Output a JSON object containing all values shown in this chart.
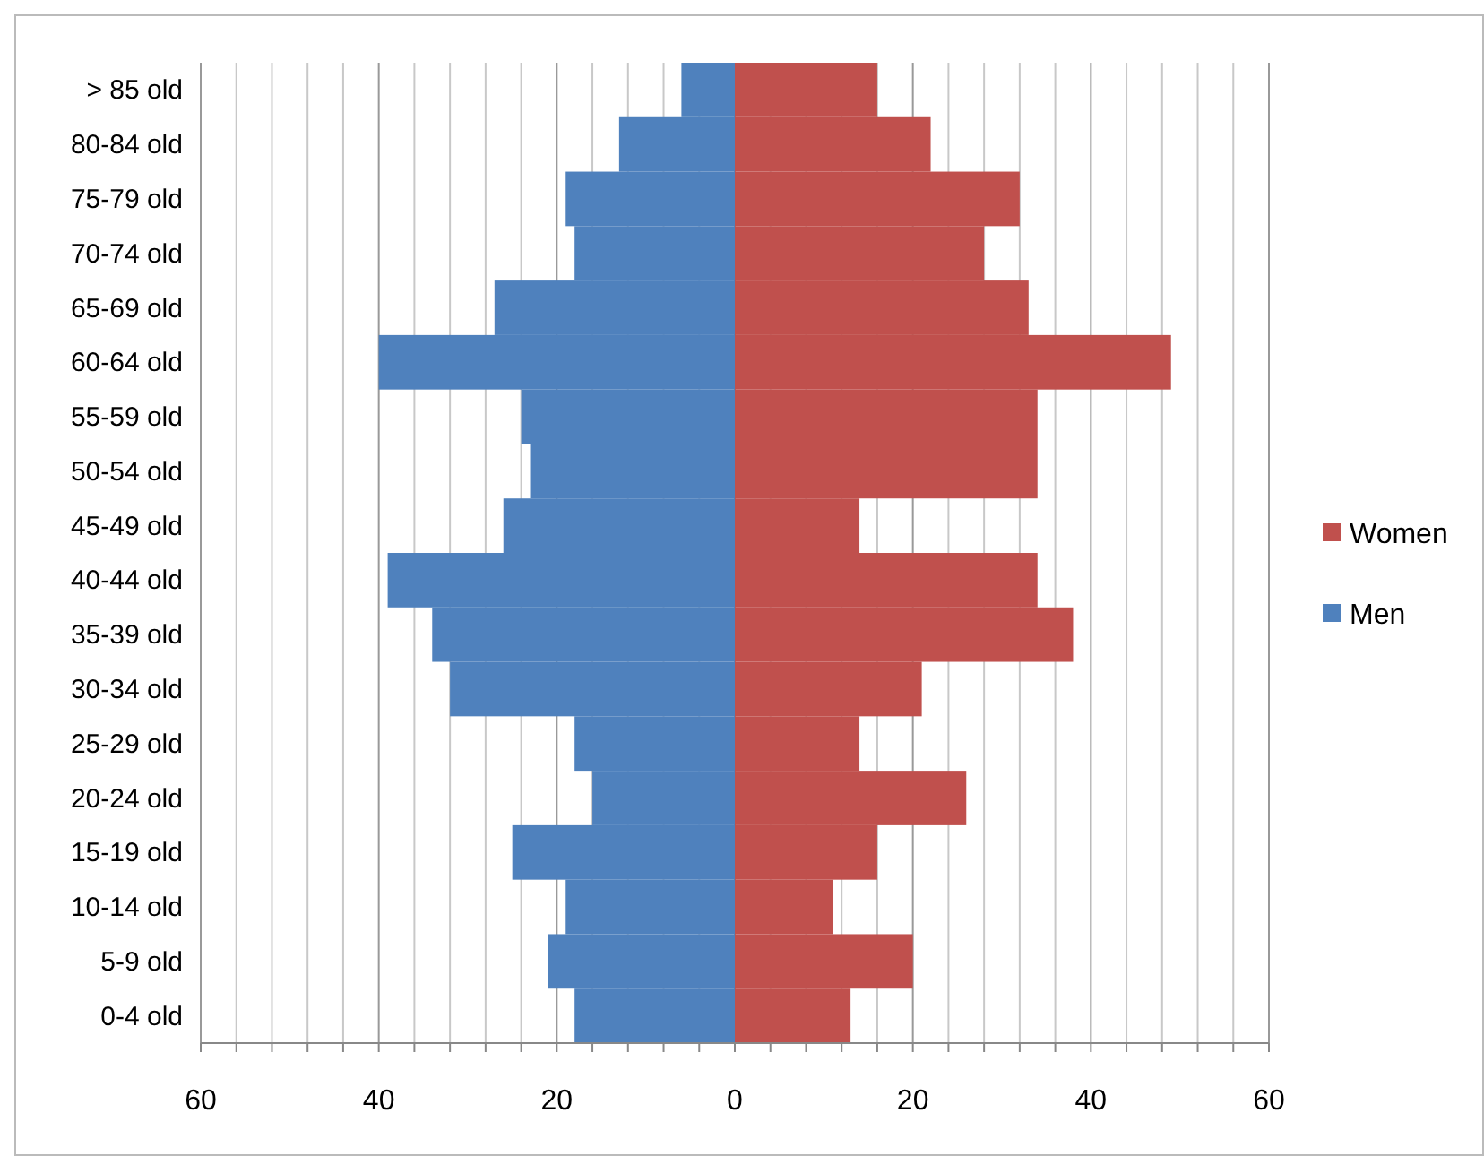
{
  "chart_data": {
    "type": "bar",
    "orientation": "horizontal",
    "categories": [
      "> 85 old",
      "80-84 old",
      "75-79 old",
      "70-74 old",
      "65-69 old",
      "60-64 old",
      "55-59 old",
      "50-54 old",
      "45-49 old",
      "40-44 old",
      "35-39 old",
      "30-34 old",
      "25-29 old",
      "20-24 old",
      "15-19 old",
      "10-14 old",
      "5-9 old",
      "0-4 old"
    ],
    "series": [
      {
        "name": "Women",
        "color": "#c0504d",
        "values": [
          16,
          22,
          32,
          28,
          33,
          49,
          34,
          34,
          14,
          34,
          38,
          21,
          14,
          26,
          16,
          11,
          20,
          13
        ]
      },
      {
        "name": "Men",
        "color": "#4f81bd",
        "values": [
          -6,
          -13,
          -19,
          -18,
          -27,
          -40,
          -24,
          -23,
          -26,
          -39,
          -34,
          -32,
          -18,
          -16,
          -25,
          -19,
          -21,
          -18
        ]
      }
    ],
    "xlim": [
      -60,
      60
    ],
    "xticks": [
      {
        "value": -60,
        "label": "60"
      },
      {
        "value": -56,
        "label": null
      },
      {
        "value": -52,
        "label": null
      },
      {
        "value": -48,
        "label": null
      },
      {
        "value": -44,
        "label": null
      },
      {
        "value": -40,
        "label": "40"
      },
      {
        "value": -36,
        "label": null
      },
      {
        "value": -32,
        "label": null
      },
      {
        "value": -28,
        "label": null
      },
      {
        "value": -24,
        "label": null
      },
      {
        "value": -20,
        "label": "20"
      },
      {
        "value": -16,
        "label": null
      },
      {
        "value": -12,
        "label": null
      },
      {
        "value": -8,
        "label": null
      },
      {
        "value": -4,
        "label": null
      },
      0,
      {
        "value": 4,
        "label": null
      },
      {
        "value": 8,
        "label": null
      },
      {
        "value": 12,
        "label": null
      },
      {
        "value": 16,
        "label": null
      },
      20,
      {
        "value": 24,
        "label": null
      },
      {
        "value": 28,
        "label": null
      },
      {
        "value": 32,
        "label": null
      },
      {
        "value": 36,
        "label": null
      },
      40,
      {
        "value": 44,
        "label": null
      },
      {
        "value": 48,
        "label": null
      },
      {
        "value": 52,
        "label": null
      },
      {
        "value": 56,
        "label": null
      },
      60
    ],
    "grid": "x",
    "legend": "right",
    "stacked": true
  }
}
